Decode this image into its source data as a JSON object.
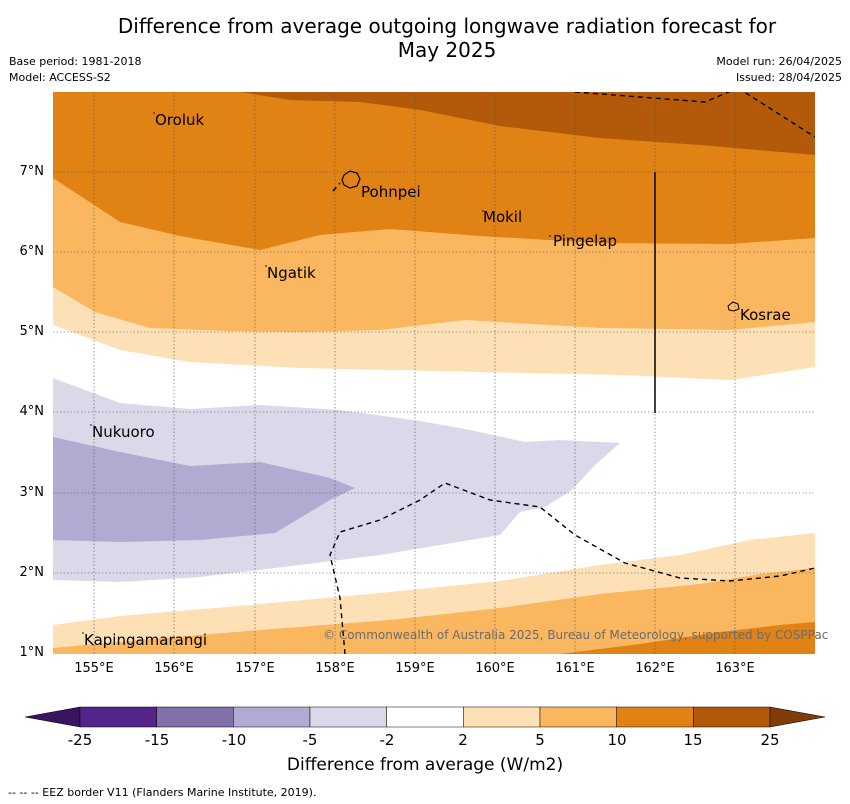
{
  "title_line1": "Difference from average outgoing longwave radiation forecast for",
  "title_line2": "May 2025",
  "meta": {
    "base_period": "Base period: 1981-2018",
    "model": "Model: ACCESS-S2",
    "model_run": "Model run: 26/04/2025",
    "issued": "Issued: 28/04/2025"
  },
  "map": {
    "lon_labels": [
      "155°E",
      "156°E",
      "157°E",
      "158°E",
      "159°E",
      "160°E",
      "161°E",
      "162°E",
      "163°E"
    ],
    "lat_labels": [
      "7°N",
      "6°N",
      "5°N",
      "4°N",
      "3°N",
      "2°N",
      "1°N"
    ],
    "places": [
      "Oroluk",
      "Pohnpei",
      "Mokil",
      "Pingelap",
      "Ngatik",
      "Kosrae",
      "Nukuoro",
      "Kapingamarangi"
    ],
    "copyright": "© Commonwealth of Australia 2025, Bureau of Meteorology, supported by COSPPac",
    "eez_line": "dashed"
  },
  "colorbar": {
    "ticks": [
      "-25",
      "-15",
      "-10",
      "-5",
      "-2",
      "2",
      "5",
      "10",
      "15",
      "25"
    ],
    "colors": [
      "#3a1460",
      "#53258a",
      "#8071a8",
      "#b1abd1",
      "#d9d9ea",
      "#ffffff",
      "#fde0b6",
      "#fab75f",
      "#e08214",
      "#b25a09",
      "#7f3b08"
    ],
    "label": "Difference from average (W/m2)"
  },
  "footnote": "--  --  -- EEZ border V11 (Flanders Marine Institute, 2019)."
}
